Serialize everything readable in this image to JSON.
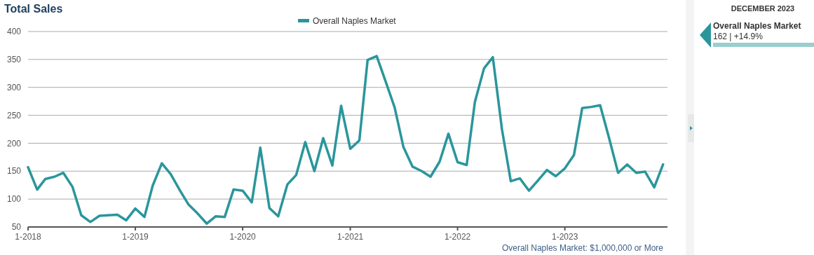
{
  "chart_data": {
    "type": "line",
    "title": "Total Sales",
    "x": [
      "2018-01",
      "2018-02",
      "2018-03",
      "2018-04",
      "2018-05",
      "2018-06",
      "2018-07",
      "2018-08",
      "2018-09",
      "2018-10",
      "2018-11",
      "2018-12",
      "2019-01",
      "2019-02",
      "2019-03",
      "2019-04",
      "2019-05",
      "2019-06",
      "2019-07",
      "2019-08",
      "2019-09",
      "2019-10",
      "2019-11",
      "2019-12",
      "2020-01",
      "2020-02",
      "2020-03",
      "2020-04",
      "2020-05",
      "2020-06",
      "2020-07",
      "2020-08",
      "2020-09",
      "2020-10",
      "2020-11",
      "2020-12",
      "2021-01",
      "2021-02",
      "2021-03",
      "2021-04",
      "2021-05",
      "2021-06",
      "2021-07",
      "2021-08",
      "2021-09",
      "2021-10",
      "2021-11",
      "2021-12",
      "2022-01",
      "2022-02",
      "2022-03",
      "2022-04",
      "2022-05",
      "2022-06",
      "2022-07",
      "2022-08",
      "2022-09",
      "2022-10",
      "2022-11",
      "2022-12",
      "2023-01",
      "2023-02",
      "2023-03",
      "2023-04",
      "2023-05",
      "2023-06",
      "2023-07",
      "2023-08",
      "2023-09",
      "2023-10",
      "2023-11",
      "2023-12"
    ],
    "series": [
      {
        "name": "Overall Naples Market",
        "color": "#2a969b",
        "values": [
          157,
          117,
          136,
          140,
          147,
          122,
          71,
          59,
          70,
          71,
          72,
          62,
          83,
          68,
          124,
          164,
          145,
          116,
          90,
          74,
          56,
          69,
          68,
          117,
          115,
          94,
          192,
          84,
          69,
          126,
          143,
          202,
          150,
          209,
          160,
          267,
          190,
          205,
          349,
          356,
          311,
          264,
          193,
          158,
          150,
          140,
          167,
          217,
          166,
          161,
          274,
          334,
          354,
          225,
          132,
          137,
          115,
          133,
          152,
          141,
          155,
          179,
          263,
          265,
          268,
          208,
          147,
          162,
          147,
          149,
          121,
          162
        ]
      }
    ],
    "xlim": [
      "2018-01",
      "2023-12-16"
    ],
    "xticks": [
      {
        "value": "2018-01",
        "label": "1-2018"
      },
      {
        "value": "2019-01",
        "label": "1-2019"
      },
      {
        "value": "2020-01",
        "label": "1-2020"
      },
      {
        "value": "2021-01",
        "label": "1-2021"
      },
      {
        "value": "2022-01",
        "label": "1-2022"
      },
      {
        "value": "2023-01",
        "label": "1-2023"
      }
    ],
    "ylim": [
      50,
      400
    ],
    "yticks": [
      50,
      100,
      150,
      200,
      250,
      300,
      350,
      400
    ],
    "grid": "y",
    "legend": "top",
    "marker": "none",
    "line_style": "solid",
    "annotations": [
      "Overall Naples Market: $1,000,000 or More",
      "DECEMBER 2023",
      "Overall Naples Market",
      "162 | +14.9%"
    ]
  }
}
